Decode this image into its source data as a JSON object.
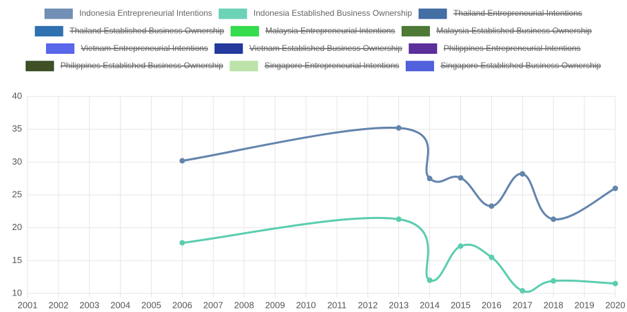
{
  "chart_data": {
    "type": "line",
    "xlim": [
      2001,
      2020
    ],
    "xticks": [
      2001,
      2002,
      2003,
      2004,
      2005,
      2006,
      2007,
      2008,
      2009,
      2010,
      2011,
      2012,
      2013,
      2014,
      2015,
      2016,
      2017,
      2018,
      2019,
      2020
    ],
    "ylim": [
      10,
      40
    ],
    "yticks": [
      10,
      15,
      20,
      25,
      30,
      35,
      40
    ],
    "grid": true,
    "legend": "top",
    "series": [
      {
        "name": "Indonesia Entrepreneurial Intentions",
        "color": "#6384ad",
        "hidden": false,
        "x": [
          2006,
          2013,
          2014,
          2015,
          2016,
          2017,
          2018,
          2020
        ],
        "values": [
          30.2,
          35.2,
          27.5,
          27.6,
          23.3,
          28.2,
          21.3,
          26.0
        ]
      },
      {
        "name": "Indonesia Established Business Ownership",
        "color": "#5ccdb0",
        "hidden": false,
        "x": [
          2006,
          2013,
          2014,
          2015,
          2016,
          2017,
          2018,
          2020
        ],
        "values": [
          17.7,
          21.3,
          12.0,
          17.2,
          15.5,
          10.4,
          11.9,
          11.5
        ]
      },
      {
        "name": "Thailand Entrepreneurial Intentions",
        "color": "#2f5f9a",
        "hidden": true
      },
      {
        "name": "Thailand Established Business Ownership",
        "color": "#1a63a8",
        "hidden": true
      },
      {
        "name": "Malaysia Entrepreneurial Intentions",
        "color": "#1fd83a",
        "hidden": true
      },
      {
        "name": "Malaysia Established Business Ownership",
        "color": "#3b6b1f",
        "hidden": true
      },
      {
        "name": "Vietnam Entrepreneurial Intentions",
        "color": "#4756e8",
        "hidden": true
      },
      {
        "name": "Vietnam Established Business Ownership",
        "color": "#0d2591",
        "hidden": true
      },
      {
        "name": "Philippines Entrepreneurial Intentions",
        "color": "#4a1a90",
        "hidden": true
      },
      {
        "name": "Philippines Established Business Ownership",
        "color": "#2a3d10",
        "hidden": true
      },
      {
        "name": "Singapore Entrepreneurial Intentions",
        "color": "#b4e0a0",
        "hidden": true
      },
      {
        "name": "Singapore Established Business Ownership",
        "color": "#3f50d8",
        "hidden": true
      }
    ]
  }
}
